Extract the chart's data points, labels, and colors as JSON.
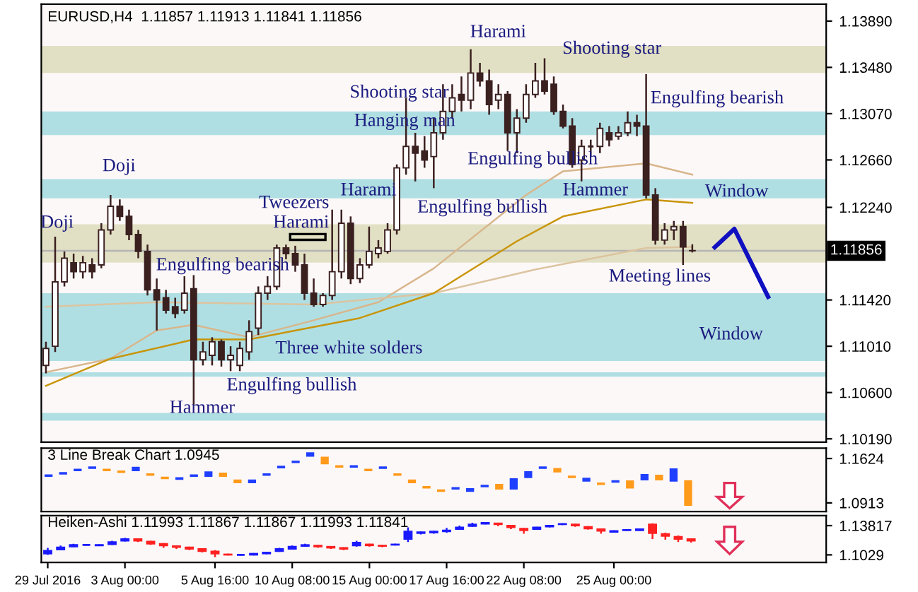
{
  "chart_data": [
    {
      "type": "candlestick",
      "title": "EURUSD,H4  1.11857 1.11913 1.11841 1.11856",
      "color": "#3b2020",
      "categories": [
        null,
        null,
        null,
        null,
        null,
        null,
        null,
        null,
        null,
        null,
        null,
        null,
        null,
        null,
        null,
        null,
        null,
        null,
        null,
        null,
        null,
        null,
        null,
        null,
        null,
        null,
        null,
        null,
        null,
        null,
        null,
        null,
        null,
        null,
        null,
        null,
        null,
        null,
        null,
        null,
        null,
        null,
        null,
        null,
        null,
        null,
        null,
        null,
        null,
        null,
        null,
        null,
        null,
        null,
        null,
        null,
        null,
        null,
        null,
        null,
        null,
        null,
        null,
        null,
        null,
        null,
        null,
        null,
        null,
        null,
        null,
        null,
        null,
        null,
        null,
        null,
        null,
        null,
        null,
        null,
        null,
        null,
        null,
        null,
        null
      ],
      "ohlc": [
        [
          1.1084,
          1.1105,
          1.1077,
          1.1099
        ],
        [
          1.1101,
          1.1198,
          1.1096,
          1.1158
        ],
        [
          1.1158,
          1.1185,
          1.1154,
          1.1179
        ],
        [
          1.1175,
          1.1183,
          1.1161,
          1.1167
        ],
        [
          1.1167,
          1.1181,
          1.1161,
          1.1175
        ],
        [
          1.1173,
          1.1179,
          1.1161,
          1.1167
        ],
        [
          1.1173,
          1.121,
          1.117,
          1.1204
        ],
        [
          1.1204,
          1.1235,
          1.12,
          1.1225
        ],
        [
          1.1225,
          1.1231,
          1.1212,
          1.1216
        ],
        [
          1.1216,
          1.1222,
          1.1195,
          1.12
        ],
        [
          1.12,
          1.1204,
          1.1179,
          1.1185
        ],
        [
          1.1185,
          1.1191,
          1.1146,
          1.1151
        ],
        [
          1.1151,
          1.1161,
          1.1115,
          1.1142
        ],
        [
          1.1144,
          1.1151,
          1.113,
          1.1133
        ],
        [
          1.1136,
          1.1144,
          1.1126,
          1.113
        ],
        [
          1.1133,
          1.1163,
          1.113,
          1.1148
        ],
        [
          1.1152,
          1.1164,
          1.1049,
          1.1089
        ],
        [
          1.1089,
          1.1105,
          1.1084,
          1.1096
        ],
        [
          1.1093,
          1.1109,
          1.1084,
          1.1105
        ],
        [
          1.1105,
          1.1107,
          1.1083,
          1.1089
        ],
        [
          1.1089,
          1.1101,
          1.1079,
          1.1093
        ],
        [
          1.1084,
          1.1105,
          1.1079,
          1.1099
        ],
        [
          1.1096,
          1.1124,
          1.1089,
          1.1114
        ],
        [
          1.1117,
          1.1154,
          1.1111,
          1.1148
        ],
        [
          1.1148,
          1.1163,
          1.1142,
          1.1154
        ],
        [
          1.1154,
          1.1191,
          1.1151,
          1.1188
        ],
        [
          1.1188,
          1.1191,
          1.1178,
          1.1183
        ],
        [
          1.1183,
          1.119,
          1.1167,
          1.1173
        ],
        [
          1.1173,
          1.1183,
          1.1142,
          1.1148
        ],
        [
          1.1148,
          1.1161,
          1.1136,
          1.1138
        ],
        [
          1.1138,
          1.1148,
          1.1136,
          1.1146
        ],
        [
          1.1146,
          1.1222,
          1.1142,
          1.1167
        ],
        [
          1.1167,
          1.1222,
          1.1161,
          1.121
        ],
        [
          1.121,
          1.1216,
          1.1156,
          1.1161
        ],
        [
          1.1161,
          1.1179,
          1.1157,
          1.1173
        ],
        [
          1.1173,
          1.1207,
          1.117,
          1.1185
        ],
        [
          1.1183,
          1.1195,
          1.1179,
          1.1188
        ],
        [
          1.1185,
          1.121,
          1.1183,
          1.1204
        ],
        [
          1.1204,
          1.1262,
          1.12,
          1.1259
        ],
        [
          1.1259,
          1.1321,
          1.1253,
          1.1278
        ],
        [
          1.1278,
          1.129,
          1.1247,
          1.1272
        ],
        [
          1.1274,
          1.1287,
          1.1259,
          1.1266
        ],
        [
          1.1269,
          1.1303,
          1.1241,
          1.129
        ],
        [
          1.129,
          1.1333,
          1.1284,
          1.1309
        ],
        [
          1.1309,
          1.1333,
          1.1303,
          1.1321
        ],
        [
          1.1324,
          1.134,
          1.1309,
          1.1319
        ],
        [
          1.1319,
          1.1364,
          1.1311,
          1.1343
        ],
        [
          1.1343,
          1.1352,
          1.1331,
          1.1336
        ],
        [
          1.1336,
          1.1346,
          1.1306,
          1.1315
        ],
        [
          1.1319,
          1.1333,
          1.1311,
          1.1324
        ],
        [
          1.1324,
          1.1327,
          1.1274,
          1.129
        ],
        [
          1.129,
          1.1311,
          1.1272,
          1.1303
        ],
        [
          1.1303,
          1.1333,
          1.1299,
          1.1324
        ],
        [
          1.1324,
          1.1352,
          1.1321,
          1.1336
        ],
        [
          1.1336,
          1.1356,
          1.1324,
          1.1327
        ],
        [
          1.1333,
          1.134,
          1.1306,
          1.1309
        ],
        [
          1.1309,
          1.1315,
          1.1294,
          1.1296
        ],
        [
          1.1296,
          1.1303,
          1.1259,
          1.1262
        ],
        [
          1.1266,
          1.1284,
          1.1247,
          1.1278
        ],
        [
          1.1278,
          1.1284,
          1.1269,
          1.1278
        ],
        [
          1.1278,
          1.1299,
          1.1272,
          1.1294
        ],
        [
          1.129,
          1.1296,
          1.1278,
          1.1284
        ],
        [
          1.1287,
          1.1296,
          1.1284,
          1.129
        ],
        [
          1.129,
          1.1309,
          1.1287,
          1.1299
        ],
        [
          1.1299,
          1.1306,
          1.1287,
          1.1296
        ],
        [
          1.1296,
          1.1342,
          1.1232,
          1.1235
        ],
        [
          1.1235,
          1.1241,
          1.1191,
          1.1195
        ],
        [
          1.1195,
          1.121,
          1.1191,
          1.1204
        ],
        [
          1.1204,
          1.1212,
          1.1195,
          1.1207
        ],
        [
          1.1207,
          1.1212,
          1.1173,
          1.1189
        ],
        [
          1.11857,
          1.11913,
          1.11841,
          1.11856
        ],
        null,
        null,
        null,
        null,
        null,
        null,
        null,
        null,
        null,
        null,
        null,
        null,
        null,
        null
      ],
      "series": [
        {
          "type": "line",
          "color": "#d8b68c",
          "values": [
            1.1078,
            null,
            null,
            null,
            null,
            null,
            null,
            1.109,
            null,
            null,
            null,
            null,
            1.1115,
            null,
            null,
            null,
            1.112,
            null,
            null,
            null,
            null,
            null,
            1.1109,
            null,
            null,
            null,
            null,
            null,
            null,
            1.1124,
            null,
            null,
            null,
            null,
            null,
            null,
            1.114,
            null,
            null,
            null,
            null,
            null,
            1.117,
            null,
            null,
            null,
            null,
            null,
            null,
            null,
            null,
            null,
            1.1235,
            null,
            null,
            null,
            1.1256,
            null,
            null,
            null,
            null,
            null,
            null,
            null,
            null,
            1.1263,
            null,
            null,
            null,
            null,
            1.1253,
            null,
            null,
            null,
            null,
            null,
            null,
            null,
            null,
            null,
            null,
            null,
            null,
            null,
            null
          ]
        },
        {
          "type": "line",
          "color": "#dcc4a0",
          "values": [
            1.1136,
            null,
            null,
            null,
            null,
            null,
            null,
            null,
            null,
            null,
            null,
            null,
            1.114,
            null,
            null,
            null,
            null,
            null,
            null,
            null,
            null,
            null,
            null,
            null,
            null,
            null,
            null,
            null,
            null,
            1.1138,
            null,
            null,
            null,
            null,
            null,
            null,
            null,
            null,
            null,
            null,
            null,
            null,
            1.1148,
            null,
            null,
            null,
            null,
            null,
            null,
            null,
            null,
            null,
            null,
            1.1169,
            null,
            null,
            null,
            null,
            null,
            null,
            null,
            null,
            null,
            null,
            null,
            1.1188,
            null,
            null,
            null,
            null,
            1.1189,
            null,
            null,
            null,
            null,
            null,
            null,
            null,
            null,
            null,
            null,
            null,
            null,
            null,
            null
          ]
        },
        {
          "type": "line",
          "color": "#c8950a",
          "values": [
            1.1066,
            null,
            null,
            null,
            null,
            null,
            null,
            1.109,
            null,
            null,
            null,
            null,
            null,
            null,
            null,
            null,
            1.1107,
            null,
            null,
            null,
            null,
            null,
            1.1107,
            null,
            null,
            null,
            null,
            null,
            null,
            null,
            null,
            null,
            null,
            null,
            1.1126,
            null,
            null,
            null,
            null,
            null,
            null,
            null,
            1.1148,
            null,
            null,
            null,
            null,
            null,
            null,
            null,
            null,
            1.1194,
            null,
            null,
            null,
            null,
            1.1216,
            null,
            null,
            null,
            null,
            null,
            null,
            null,
            null,
            1.1231,
            null,
            null,
            null,
            null,
            1.1228,
            null,
            null,
            null,
            null,
            null,
            null,
            null,
            null,
            null,
            null,
            null,
            null,
            null,
            null
          ]
        }
      ],
      "bands": [
        {
          "axis": "y",
          "from": 1.1343,
          "to": 1.1367,
          "color": "#e2e0c4"
        },
        {
          "axis": "y",
          "from": 1.1288,
          "to": 1.1309,
          "color": "#b0dfe3"
        },
        {
          "axis": "y",
          "from": 1.1232,
          "to": 1.1249,
          "color": "#b0dfe3"
        },
        {
          "axis": "y",
          "from": 1.1175,
          "to": 1.1209,
          "color": "#e2e0c4"
        },
        {
          "axis": "y",
          "from": 1.1088,
          "to": 1.1148,
          "color": "#b0dfe3"
        },
        {
          "axis": "y",
          "from": 1.1074,
          "to": 1.1078,
          "color": "#b0dfe3"
        },
        {
          "axis": "y",
          "from": 1.1035,
          "to": 1.1042,
          "color": "#b0dfe3"
        }
      ],
      "ref_lines": [
        {
          "axis": "y",
          "value": 1.11856,
          "label": "1.11856",
          "color": "#b4b4b4"
        }
      ],
      "annotations": [
        "Doji",
        "Doji",
        "Engulfing bearish",
        "Tweezers",
        "Harami",
        "Harami",
        "Shooting star",
        "Hanging man",
        "Harami",
        "Shooting star",
        "Engulfing bearish",
        "Engulfing bullish",
        "Engulfing bullish",
        "Hammer",
        "Window",
        "Meeting lines",
        "Window",
        "Three white solders",
        "Engulfing bullish",
        "Hammer"
      ],
      "ylim": [
        1.1016,
        1.1404
      ],
      "yticks": [
        {
          "value": 1.1389,
          "label": "1.13890"
        },
        {
          "value": 1.1348,
          "label": "1.13480"
        },
        {
          "value": 1.1307,
          "label": "1.13070"
        },
        {
          "value": 1.1266,
          "label": "1.12660"
        },
        {
          "value": 1.1224,
          "label": "1.12240"
        },
        {
          "value": 1.1142,
          "label": "1.11420"
        },
        {
          "value": 1.1101,
          "label": "1.11010"
        },
        {
          "value": 1.106,
          "label": "1.10600"
        },
        {
          "value": 1.1019,
          "label": "1.10190"
        }
      ],
      "tick_labels": "y"
    },
    {
      "type": "bar",
      "title": "3 Line Break Chart 1.0945",
      "categories": [
        null,
        null,
        null,
        null,
        null,
        null,
        null,
        null,
        null,
        null,
        null,
        null,
        null,
        null,
        null,
        null,
        null,
        null,
        null,
        null,
        null,
        null,
        null,
        null,
        null,
        null,
        null,
        null,
        null,
        null,
        null,
        null,
        null,
        null,
        null,
        null,
        null,
        null,
        null,
        null,
        null,
        null,
        null,
        null,
        null,
        null,
        null,
        null,
        null,
        null,
        null,
        null,
        null,
        null
      ],
      "base": [
        1.1329,
        1.1366,
        1.1421,
        1.1458,
        1.1421,
        1.1393,
        1.1421,
        1.1347,
        1.1292,
        1.1283,
        1.1329,
        1.1329,
        1.1329,
        1.1227,
        1.1227,
        1.1347,
        1.1467,
        1.155,
        1.1652,
        1.1532,
        1.1476,
        1.1476,
        1.1421,
        1.1458,
        1.1347,
        1.1227,
        1.1144,
        1.1089,
        1.1126,
        1.1089,
        1.1162,
        1.1126,
        1.1126,
        1.131,
        1.1458,
        1.1402,
        1.131,
        1.1255,
        1.1199,
        1.1237,
        1.1144,
        1.1274,
        1.1274,
        1.1255,
        1.0867,
        null,
        null,
        null,
        null,
        null,
        null,
        null,
        null,
        null
      ],
      "values": [
        0.004,
        0.004,
        0.004,
        0.004,
        0.004,
        0.004,
        0.007,
        0.004,
        0.004,
        0.004,
        0.004,
        0.009,
        0.007,
        0.006,
        0.006,
        0.004,
        0.004,
        0.004,
        0.007,
        0.012,
        0.004,
        0.004,
        0.004,
        0.004,
        0.004,
        0.006,
        0.004,
        0.004,
        0.004,
        0.006,
        0.004,
        0.009,
        0.018,
        0.011,
        0.004,
        0.007,
        0.004,
        0.006,
        0.004,
        0.004,
        0.013,
        0.01,
        0.009,
        0.021,
        0.041,
        null,
        null,
        null,
        null,
        null,
        null,
        null,
        null,
        null
      ],
      "colors": [
        "#1f3fff",
        "#1f3fff",
        "#1f3fff",
        "#1f3fff",
        "#ff9a1a",
        "#ff9a1a",
        "#1f3fff",
        "#ff9a1a",
        "#ff9a1a",
        "#1f3fff",
        "#1f3fff",
        "#1f3fff",
        "#ff9a1a",
        "#ff9a1a",
        "#1f3fff",
        "#1f3fff",
        "#1f3fff",
        "#1f3fff",
        "#1f3fff",
        "#ff9a1a",
        "#ff9a1a",
        "#1f3fff",
        "#ff9a1a",
        "#1f3fff",
        "#ff9a1a",
        "#ff9a1a",
        "#ff9a1a",
        "#ff9a1a",
        "#1f3fff",
        "#1f3fff",
        "#1f3fff",
        "#ff9a1a",
        "#1f3fff",
        "#1f3fff",
        "#1f3fff",
        "#ff9a1a",
        "#ff9a1a",
        "#1f3fff",
        "#ff9a1a",
        "#1f3fff",
        "#ff9a1a",
        "#1f3fff",
        "#ff9a1a",
        "#1f3fff",
        "#ff9a1a",
        null,
        null,
        null,
        null,
        null,
        null,
        null,
        null,
        null
      ],
      "ylim": [
        1.0775,
        1.179
      ],
      "yticks": [
        1.1624,
        1.0913
      ],
      "tick_labels": "y"
    },
    {
      "type": "candlestick",
      "title": "Heiken-Ashi 1.11993 1.11867 1.11867 1.11993 1.11841",
      "categories": [
        "29 Jul 2016",
        null,
        null,
        null,
        null,
        null,
        "3 Aug 00:00",
        null,
        null,
        null,
        null,
        null,
        null,
        "5 Aug 16:00",
        null,
        null,
        null,
        null,
        null,
        "10 Aug 08:00",
        null,
        null,
        null,
        null,
        null,
        "15 Aug 00:00",
        null,
        null,
        null,
        null,
        null,
        "17 Aug 16:00",
        null,
        null,
        null,
        null,
        null,
        "22 Aug 08:00",
        null,
        null,
        null,
        null,
        null,
        null,
        "25 Aug 00:00",
        null,
        null,
        null,
        null,
        null,
        null,
        null,
        null,
        null,
        null,
        null,
        null,
        null,
        null,
        null,
        null
      ],
      "ohlc": [
        [
          1.1044,
          1.1114,
          1.1029,
          1.1079
        ],
        [
          1.1093,
          1.1142,
          1.1086,
          1.1121
        ],
        [
          1.1128,
          1.1163,
          1.1121,
          1.1149
        ],
        [
          1.1149,
          1.1156,
          1.1142,
          1.1149
        ],
        [
          1.1142,
          1.1156,
          1.1135,
          1.1149
        ],
        [
          1.1156,
          1.1198,
          1.1149,
          1.1184
        ],
        [
          1.1198,
          1.1234,
          1.1191,
          1.122
        ],
        [
          1.122,
          1.1227,
          1.1184,
          1.1198
        ],
        [
          1.1191,
          1.1198,
          1.1149,
          1.1163
        ],
        [
          1.1163,
          1.117,
          1.1114,
          1.1142
        ],
        [
          1.1135,
          1.1142,
          1.11,
          1.1121
        ],
        [
          1.1121,
          1.1128,
          1.1086,
          1.11
        ],
        [
          1.11,
          1.1107,
          1.1058,
          1.1072
        ],
        [
          1.1072,
          1.1086,
          1.1001,
          1.1044
        ],
        [
          1.1036,
          1.1044,
          1.1022,
          1.1029
        ],
        [
          1.1029,
          1.1036,
          1.1022,
          1.1029
        ],
        [
          1.1029,
          1.1051,
          1.1022,
          1.1044
        ],
        [
          1.1044,
          1.1065,
          1.1036,
          1.1058
        ],
        [
          1.1072,
          1.1114,
          1.1065,
          1.11
        ],
        [
          1.11,
          1.1142,
          1.1093,
          1.1128
        ],
        [
          1.1135,
          1.1163,
          1.1128,
          1.1149
        ],
        [
          1.1142,
          1.1149,
          1.1114,
          1.1128
        ],
        [
          1.1128,
          1.1135,
          1.11,
          1.1114
        ],
        [
          1.1114,
          1.1121,
          1.1086,
          1.11
        ],
        [
          1.1142,
          1.1198,
          1.1128,
          1.1177
        ],
        [
          1.1156,
          1.1163,
          1.1128,
          1.1142
        ],
        [
          1.1142,
          1.1149,
          1.1121,
          1.1135
        ],
        [
          1.1149,
          1.1163,
          1.1142,
          1.1156
        ],
        [
          1.122,
          1.1361,
          1.1184,
          1.1311
        ],
        [
          1.129,
          1.1311,
          1.1276,
          1.1304
        ],
        [
          1.1297,
          1.1318,
          1.1283,
          1.1311
        ],
        [
          1.1311,
          1.1354,
          1.1297,
          1.1325
        ],
        [
          1.1339,
          1.1382,
          1.1332,
          1.1361
        ],
        [
          1.1375,
          1.1417,
          1.1368,
          1.1396
        ],
        [
          1.1403,
          1.1424,
          1.1396,
          1.1417
        ],
        [
          1.141,
          1.1417,
          1.1375,
          1.1396
        ],
        [
          1.1382,
          1.1389,
          1.1339,
          1.1361
        ],
        [
          1.1346,
          1.1354,
          1.1283,
          1.1325
        ],
        [
          1.1339,
          1.1368,
          1.1332,
          1.1361
        ],
        [
          1.1368,
          1.1389,
          1.1361,
          1.1382
        ],
        [
          1.1396,
          1.141,
          1.1389,
          1.1403
        ],
        [
          1.1396,
          1.1403,
          1.1368,
          1.1382
        ],
        [
          1.1368,
          1.1375,
          1.1332,
          1.1346
        ],
        [
          1.1339,
          1.1346,
          1.1283,
          1.1318
        ],
        [
          1.1304,
          1.1325,
          1.1297,
          1.1318
        ],
        [
          1.1325,
          1.1339,
          1.1318,
          1.1332
        ],
        [
          1.1325,
          1.1346,
          1.1318,
          1.1339
        ],
        [
          1.1396,
          1.141,
          1.122,
          1.129
        ],
        [
          1.1283,
          1.1297,
          1.1212,
          1.1255
        ],
        [
          1.1248,
          1.1262,
          1.1184,
          1.122
        ],
        [
          1.122,
          1.1227,
          1.1177,
          1.1198
        ],
        null,
        null,
        null,
        null,
        null,
        null,
        null,
        null,
        null,
        null
      ],
      "colors": [
        "#1a1aff",
        "#1a1aff",
        "#1a1aff",
        "#1a1aff",
        "#1a1aff",
        "#1a1aff",
        "#1a1aff",
        "#ff2020",
        "#ff2020",
        "#ff2020",
        "#ff2020",
        "#ff2020",
        "#ff2020",
        "#ff2020",
        "#ff2020",
        "#1a1aff",
        "#1a1aff",
        "#1a1aff",
        "#1a1aff",
        "#1a1aff",
        "#1a1aff",
        "#ff2020",
        "#ff2020",
        "#ff2020",
        "#1a1aff",
        "#ff2020",
        "#ff2020",
        "#1a1aff",
        "#1a1aff",
        "#1a1aff",
        "#1a1aff",
        "#1a1aff",
        "#1a1aff",
        "#1a1aff",
        "#1a1aff",
        "#ff2020",
        "#ff2020",
        "#ff2020",
        "#1a1aff",
        "#1a1aff",
        "#1a1aff",
        "#ff2020",
        "#ff2020",
        "#ff2020",
        "#1a1aff",
        "#1a1aff",
        "#1a1aff",
        "#ff2020",
        "#ff2020",
        "#ff2020",
        "#ff2020",
        null,
        null,
        null,
        null,
        null,
        null,
        null,
        null,
        null,
        null
      ],
      "ylim": [
        1.0938,
        1.1502
      ],
      "yticks": [
        {
          "value": 1.13817,
          "label": "1.13817"
        },
        {
          "value": 1.1029,
          "label": "1.1029"
        }
      ]
    }
  ]
}
